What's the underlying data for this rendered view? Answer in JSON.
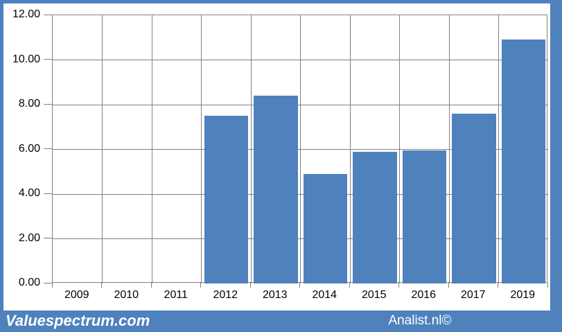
{
  "chart_data": {
    "type": "bar",
    "title": "",
    "xlabel": "",
    "ylabel": "",
    "categories": [
      "2009",
      "2010",
      "2011",
      "2012",
      "2013",
      "2014",
      "2015",
      "2016",
      "2017",
      "2019"
    ],
    "values": [
      0,
      0,
      0,
      7.5,
      8.4,
      4.9,
      5.9,
      5.95,
      7.6,
      10.9
    ],
    "ylim": [
      0,
      12
    ],
    "ytick_step": 2,
    "ytick_labels": [
      "0.00",
      "2.00",
      "4.00",
      "6.00",
      "8.00",
      "10.00",
      "12.00"
    ],
    "grid": true,
    "legend": "none",
    "colors": {
      "bar_fill": "#4f81bd",
      "surround_background": "#4f81bd",
      "plot_background": "#ffffff",
      "gridline": "#808080",
      "axis_text": "#000000"
    }
  },
  "footer": {
    "left_brand": "Valuespectrum.com",
    "right_brand": "Analist.nl©"
  }
}
